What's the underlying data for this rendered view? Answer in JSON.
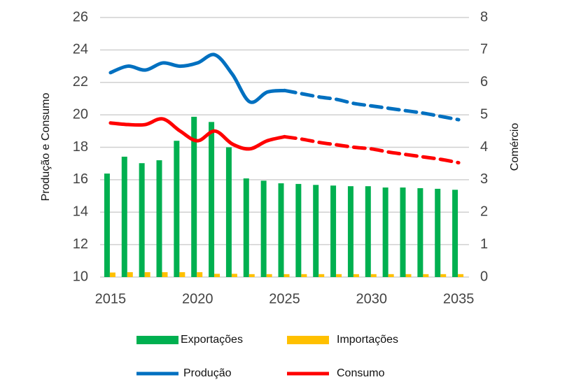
{
  "chart_data": {
    "type": "combo",
    "x": [
      2015,
      2016,
      2017,
      2018,
      2019,
      2020,
      2021,
      2022,
      2023,
      2024,
      2025,
      2026,
      2027,
      2028,
      2029,
      2030,
      2031,
      2032,
      2033,
      2034,
      2035
    ],
    "xlim": [
      2014.4,
      2035.6
    ],
    "xticks": [
      2015,
      2020,
      2025,
      2030,
      2035
    ],
    "ylim": [
      10,
      26
    ],
    "yticks": [
      10,
      12,
      14,
      16,
      18,
      20,
      22,
      24,
      26
    ],
    "y2lim": [
      0,
      8
    ],
    "y2ticks": [
      0,
      1,
      2,
      3,
      4,
      5,
      6,
      7,
      8
    ],
    "y_label": "Produção e Consumo",
    "y2_label": "Comércio",
    "grid": true,
    "forecast_from": 2025,
    "legend": "bottom",
    "series": [
      {
        "name": "Exportações",
        "type": "bar",
        "axis": "y2",
        "color": "#00b050",
        "values": [
          3.19,
          3.71,
          3.51,
          3.6,
          4.2,
          4.94,
          4.78,
          4.0,
          3.04,
          2.97,
          2.89,
          2.87,
          2.84,
          2.82,
          2.8,
          2.8,
          2.76,
          2.76,
          2.74,
          2.72,
          2.69
        ]
      },
      {
        "name": "Importações",
        "type": "bar",
        "axis": "y2",
        "color": "#ffc000",
        "values": [
          0.14,
          0.15,
          0.15,
          0.15,
          0.15,
          0.15,
          0.1,
          0.1,
          0.09,
          0.09,
          0.09,
          0.09,
          0.09,
          0.09,
          0.09,
          0.09,
          0.09,
          0.09,
          0.09,
          0.09,
          0.09
        ]
      },
      {
        "name": "Produção",
        "type": "line",
        "color": "#0070c0",
        "values": [
          22.6,
          23.0,
          22.76,
          23.2,
          23.0,
          23.2,
          23.7,
          22.5,
          20.8,
          21.4,
          21.5,
          21.3,
          21.1,
          20.95,
          20.7,
          20.55,
          20.4,
          20.25,
          20.1,
          19.9,
          19.7
        ]
      },
      {
        "name": "Consumo",
        "type": "line",
        "color": "#ff0000",
        "values": [
          19.5,
          19.4,
          19.4,
          19.75,
          19.0,
          18.4,
          19.0,
          18.2,
          17.9,
          18.4,
          18.65,
          18.5,
          18.3,
          18.15,
          18.0,
          17.9,
          17.7,
          17.55,
          17.4,
          17.25,
          17.05
        ]
      }
    ]
  }
}
